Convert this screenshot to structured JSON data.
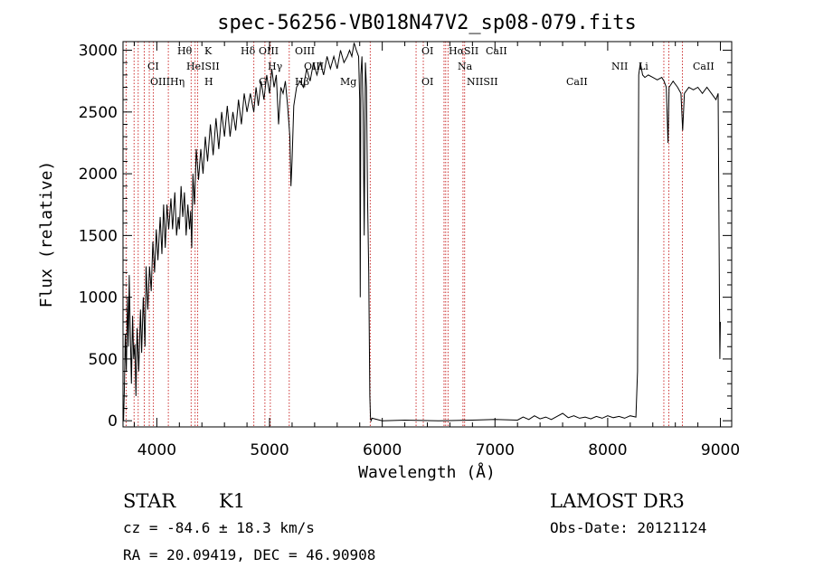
{
  "chart_data": {
    "type": "line",
    "title": "spec-56256-VB018N47V2_sp08-079.fits",
    "xlabel": "Wavelength (Å)",
    "ylabel": "Flux (relative)",
    "xlim": [
      3700,
      9100
    ],
    "ylim": [
      -50,
      3070
    ],
    "x_ticks": [
      4000,
      5000,
      6000,
      7000,
      8000,
      9000
    ],
    "y_ticks": [
      0,
      500,
      1000,
      1500,
      2000,
      2500,
      3000
    ],
    "grid": false,
    "series": [
      {
        "color": "#000000",
        "points": [
          [
            3705,
            0
          ],
          [
            3712,
            250
          ],
          [
            3720,
            700
          ],
          [
            3730,
            400
          ],
          [
            3740,
            1000
          ],
          [
            3748,
            600
          ],
          [
            3755,
            1180
          ],
          [
            3765,
            700
          ],
          [
            3775,
            300
          ],
          [
            3785,
            850
          ],
          [
            3795,
            500
          ],
          [
            3805,
            620
          ],
          [
            3815,
            200
          ],
          [
            3825,
            750
          ],
          [
            3840,
            400
          ],
          [
            3855,
            900
          ],
          [
            3865,
            550
          ],
          [
            3880,
            1000
          ],
          [
            3895,
            600
          ],
          [
            3905,
            1250
          ],
          [
            3920,
            900
          ],
          [
            3935,
            1250
          ],
          [
            3950,
            1050
          ],
          [
            3965,
            1450
          ],
          [
            3980,
            1200
          ],
          [
            3995,
            1550
          ],
          [
            4010,
            1300
          ],
          [
            4030,
            1650
          ],
          [
            4045,
            1350
          ],
          [
            4060,
            1750
          ],
          [
            4075,
            1400
          ],
          [
            4090,
            1750
          ],
          [
            4105,
            1550
          ],
          [
            4125,
            1800
          ],
          [
            4140,
            1550
          ],
          [
            4160,
            1850
          ],
          [
            4175,
            1500
          ],
          [
            4190,
            1650
          ],
          [
            4200,
            1550
          ],
          [
            4215,
            1900
          ],
          [
            4230,
            1650
          ],
          [
            4245,
            1850
          ],
          [
            4260,
            1500
          ],
          [
            4275,
            1750
          ],
          [
            4290,
            1550
          ],
          [
            4300,
            1700
          ],
          [
            4310,
            1400
          ],
          [
            4320,
            2000
          ],
          [
            4335,
            1750
          ],
          [
            4350,
            2200
          ],
          [
            4370,
            1950
          ],
          [
            4390,
            2200
          ],
          [
            4410,
            2000
          ],
          [
            4430,
            2300
          ],
          [
            4450,
            2100
          ],
          [
            4475,
            2400
          ],
          [
            4500,
            2150
          ],
          [
            4525,
            2450
          ],
          [
            4550,
            2200
          ],
          [
            4575,
            2500
          ],
          [
            4600,
            2300
          ],
          [
            4625,
            2550
          ],
          [
            4650,
            2300
          ],
          [
            4675,
            2500
          ],
          [
            4700,
            2350
          ],
          [
            4725,
            2600
          ],
          [
            4750,
            2400
          ],
          [
            4775,
            2650
          ],
          [
            4800,
            2500
          ],
          [
            4830,
            2650
          ],
          [
            4860,
            2500
          ],
          [
            4880,
            2700
          ],
          [
            4900,
            2550
          ],
          [
            4925,
            2750
          ],
          [
            4950,
            2600
          ],
          [
            4975,
            2800
          ],
          [
            5000,
            2650
          ],
          [
            5020,
            2850
          ],
          [
            5040,
            2700
          ],
          [
            5060,
            2800
          ],
          [
            5080,
            2400
          ],
          [
            5100,
            2700
          ],
          [
            5120,
            2650
          ],
          [
            5140,
            2750
          ],
          [
            5160,
            2550
          ],
          [
            5180,
            2300
          ],
          [
            5190,
            1900
          ],
          [
            5200,
            2100
          ],
          [
            5215,
            2550
          ],
          [
            5240,
            2700
          ],
          [
            5270,
            2750
          ],
          [
            5300,
            2700
          ],
          [
            5330,
            2850
          ],
          [
            5360,
            2750
          ],
          [
            5390,
            2900
          ],
          [
            5420,
            2800
          ],
          [
            5450,
            2900
          ],
          [
            5480,
            2800
          ],
          [
            5510,
            2950
          ],
          [
            5540,
            2850
          ],
          [
            5570,
            2950
          ],
          [
            5600,
            2850
          ],
          [
            5630,
            3000
          ],
          [
            5660,
            2900
          ],
          [
            5690,
            2950
          ],
          [
            5710,
            3000
          ],
          [
            5730,
            2950
          ],
          [
            5750,
            3060
          ],
          [
            5770,
            3000
          ],
          [
            5790,
            2950
          ],
          [
            5800,
            2600
          ],
          [
            5805,
            1000
          ],
          [
            5810,
            2800
          ],
          [
            5820,
            2950
          ],
          [
            5830,
            2500
          ],
          [
            5840,
            1500
          ],
          [
            5850,
            2900
          ],
          [
            5860,
            2700
          ],
          [
            5870,
            1800
          ],
          [
            5880,
            1200
          ],
          [
            5890,
            200
          ],
          [
            5895,
            30
          ],
          [
            5900,
            0
          ],
          [
            5910,
            20
          ],
          [
            6000,
            0
          ],
          [
            6200,
            5
          ],
          [
            6500,
            0
          ],
          [
            6800,
            5
          ],
          [
            7000,
            10
          ],
          [
            7200,
            5
          ],
          [
            7250,
            30
          ],
          [
            7300,
            10
          ],
          [
            7350,
            40
          ],
          [
            7400,
            15
          ],
          [
            7450,
            30
          ],
          [
            7500,
            10
          ],
          [
            7550,
            35
          ],
          [
            7600,
            60
          ],
          [
            7650,
            25
          ],
          [
            7700,
            40
          ],
          [
            7750,
            20
          ],
          [
            7800,
            30
          ],
          [
            7850,
            15
          ],
          [
            7900,
            35
          ],
          [
            7950,
            20
          ],
          [
            8000,
            40
          ],
          [
            8050,
            25
          ],
          [
            8100,
            35
          ],
          [
            8150,
            20
          ],
          [
            8200,
            40
          ],
          [
            8250,
            30
          ],
          [
            8265,
            400
          ],
          [
            8275,
            2800
          ],
          [
            8290,
            2900
          ],
          [
            8310,
            2800
          ],
          [
            8330,
            2780
          ],
          [
            8360,
            2800
          ],
          [
            8400,
            2780
          ],
          [
            8440,
            2760
          ],
          [
            8480,
            2780
          ],
          [
            8500,
            2750
          ],
          [
            8520,
            2700
          ],
          [
            8535,
            2250
          ],
          [
            8545,
            2700
          ],
          [
            8580,
            2750
          ],
          [
            8620,
            2700
          ],
          [
            8650,
            2650
          ],
          [
            8665,
            2350
          ],
          [
            8680,
            2650
          ],
          [
            8720,
            2700
          ],
          [
            8760,
            2680
          ],
          [
            8800,
            2700
          ],
          [
            8840,
            2650
          ],
          [
            8880,
            2700
          ],
          [
            8920,
            2650
          ],
          [
            8960,
            2600
          ],
          [
            8980,
            2650
          ],
          [
            8995,
            500
          ],
          [
            9000,
            800
          ]
        ]
      }
    ],
    "spectral_lines": [
      {
        "x": 3760,
        "label": "Hθ",
        "row": 0
      },
      {
        "x": 3790,
        "label": "K",
        "row": 0
      },
      {
        "x": 3830,
        "label": "Hδ",
        "row": 0
      },
      {
        "x": 3850,
        "label": "OIII",
        "row": 0
      },
      {
        "x": 3890,
        "label": "OIII",
        "row": 0
      },
      {
        "x": 4030,
        "label": "OI",
        "row": 0
      },
      {
        "x": 4060,
        "label": "HαSII",
        "row": 0
      },
      {
        "x": 4101,
        "label": "CaII",
        "row": 0
      },
      {
        "x": 3727,
        "label": "CI",
        "row": 1
      },
      {
        "x": 3770,
        "label": "HeISII",
        "row": 1
      },
      {
        "x": 3860,
        "label": "Hγ",
        "row": 1
      },
      {
        "x": 3900,
        "label": "OIII",
        "row": 1
      },
      {
        "x": 4070,
        "label": "Na",
        "row": 1
      },
      {
        "x": 4240,
        "label": "NII",
        "row": 1
      },
      {
        "x": 4270,
        "label": "Li",
        "row": 1
      },
      {
        "x": 4330,
        "label": "CaII",
        "row": 1
      },
      {
        "x": 3730,
        "label": "OIIIHη",
        "row": 2
      },
      {
        "x": 3790,
        "label": "H",
        "row": 2
      },
      {
        "x": 3850,
        "label": "G",
        "row": 2
      },
      {
        "x": 3890,
        "label": "Hβ",
        "row": 2
      },
      {
        "x": 3940,
        "label": "Mg",
        "row": 2
      },
      {
        "x": 4030,
        "label": "OI",
        "row": 2
      },
      {
        "x": 4080,
        "label": "NIISII",
        "row": 2
      },
      {
        "x": 4190,
        "label": "CaII",
        "row": 2
      }
    ],
    "line_markers": [
      3727,
      3798,
      3835,
      3889,
      3933,
      3970,
      4102,
      4304,
      4340,
      4363,
      4861,
      4959,
      5007,
      5175,
      5893,
      6300,
      6364,
      6548,
      6563,
      6583,
      6716,
      6731,
      8498,
      8542,
      8662
    ]
  },
  "info": {
    "object_type": "STAR",
    "subclass": "K1",
    "survey": "LAMOST DR3",
    "cz": "cz = -84.6 ± 18.3 km/s",
    "obs_date": "Obs-Date: 20121124",
    "coords": "RA =  20.09419, DEC =  46.90908"
  }
}
